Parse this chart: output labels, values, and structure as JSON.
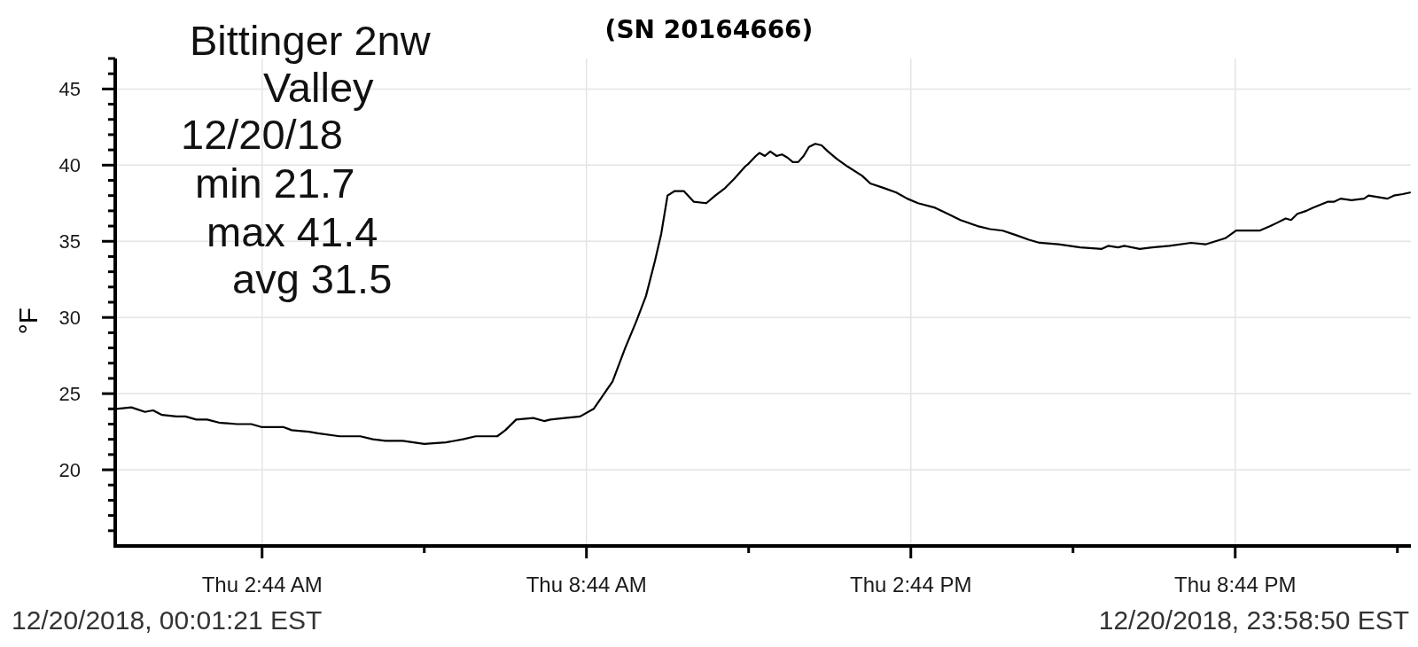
{
  "chart_data": {
    "type": "line",
    "title": "(SN 20164666)",
    "ylabel": "°F",
    "annotations": [
      "Bittinger 2nw",
      "Valley",
      "12/20/18",
      "min 21.7",
      "max 41.4",
      "avg 31.5",
      "12/20/2018, 00:01:21 EST",
      "12/20/2018, 23:58:50 EST"
    ],
    "x": [
      "2018-12-20T00:02",
      "2018-12-20T00:19",
      "2018-12-20T00:34",
      "2018-12-20T00:43",
      "2018-12-20T00:53",
      "2018-12-20T01:09",
      "2018-12-20T01:19",
      "2018-12-20T01:31",
      "2018-12-20T01:43",
      "2018-12-20T01:56",
      "2018-12-20T02:16",
      "2018-12-20T02:32",
      "2018-12-20T02:44",
      "2018-12-20T03:08",
      "2018-12-20T03:17",
      "2018-12-20T03:36",
      "2018-12-20T03:46",
      "2018-12-20T04:10",
      "2018-12-20T04:33",
      "2018-12-20T04:47",
      "2018-12-20T05:01",
      "2018-12-20T05:20",
      "2018-12-20T05:44",
      "2018-12-20T06:08",
      "2018-12-20T06:27",
      "2018-12-20T06:41",
      "2018-12-20T07:05",
      "2018-12-20T07:14",
      "2018-12-20T07:26",
      "2018-12-20T07:45",
      "2018-12-20T07:57",
      "2018-12-20T08:04",
      "2018-12-20T08:20",
      "2018-12-20T08:37",
      "2018-12-20T08:52",
      "2018-12-20T09:13",
      "2018-12-20T09:27",
      "2018-12-20T09:39",
      "2018-12-20T09:50",
      "2018-12-20T10:00",
      "2018-12-20T10:07",
      "2018-12-20T10:14",
      "2018-12-20T10:22",
      "2018-12-20T10:32",
      "2018-12-20T10:43",
      "2018-12-20T10:57",
      "2018-12-20T11:07",
      "2018-12-20T11:18",
      "2018-12-20T11:28",
      "2018-12-20T11:40",
      "2018-12-20T11:44",
      "2018-12-20T11:52",
      "2018-12-20T11:56",
      "2018-12-20T12:02",
      "2018-12-20T12:08",
      "2018-12-20T12:15",
      "2018-12-20T12:21",
      "2018-12-20T12:27",
      "2018-12-20T12:33",
      "2018-12-20T12:39",
      "2018-12-20T12:45",
      "2018-12-20T12:51",
      "2018-12-20T12:58",
      "2018-12-20T13:05",
      "2018-12-20T13:12",
      "2018-12-20T13:22",
      "2018-12-20T13:34",
      "2018-12-20T13:50",
      "2018-12-20T13:59",
      "2018-12-20T14:14",
      "2018-12-20T14:28",
      "2018-12-20T14:40",
      "2018-12-20T14:52",
      "2018-12-20T15:11",
      "2018-12-20T15:25",
      "2018-12-20T15:39",
      "2018-12-20T15:58",
      "2018-12-20T16:12",
      "2018-12-20T16:26",
      "2018-12-20T16:41",
      "2018-12-20T16:55",
      "2018-12-20T17:07",
      "2018-12-20T17:28",
      "2018-12-20T17:52",
      "2018-12-20T18:16",
      "2018-12-20T18:23",
      "2018-12-20T18:34",
      "2018-12-20T18:41",
      "2018-12-20T18:58",
      "2018-12-20T19:12",
      "2018-12-20T19:31",
      "2018-12-20T19:55",
      "2018-12-20T20:11",
      "2018-12-20T20:33",
      "2018-12-20T20:45",
      "2018-12-20T21:11",
      "2018-12-20T21:23",
      "2018-12-20T21:30",
      "2018-12-20T21:40",
      "2018-12-20T21:46",
      "2018-12-20T21:53",
      "2018-12-20T22:03",
      "2018-12-20T22:10",
      "2018-12-20T22:27",
      "2018-12-20T22:34",
      "2018-12-20T22:41",
      "2018-12-20T22:53",
      "2018-12-20T23:07",
      "2018-12-20T23:12",
      "2018-12-20T23:33",
      "2018-12-20T23:40",
      "2018-12-20T23:50",
      "2018-12-20T23:58"
    ],
    "values": [
      24.0,
      24.1,
      23.8,
      23.9,
      23.6,
      23.5,
      23.5,
      23.3,
      23.3,
      23.1,
      23.0,
      23.0,
      22.8,
      22.8,
      22.6,
      22.5,
      22.4,
      22.2,
      22.2,
      22.0,
      21.9,
      21.9,
      21.7,
      21.8,
      22.0,
      22.2,
      22.2,
      22.6,
      23.3,
      23.4,
      23.2,
      23.3,
      23.4,
      23.5,
      24.0,
      25.8,
      28.0,
      29.7,
      31.4,
      33.7,
      35.5,
      38.0,
      38.3,
      38.3,
      37.6,
      37.5,
      38.0,
      38.5,
      39.1,
      39.9,
      40.1,
      40.6,
      40.8,
      40.6,
      40.9,
      40.6,
      40.7,
      40.5,
      40.2,
      40.2,
      40.6,
      41.2,
      41.4,
      41.3,
      40.9,
      40.4,
      39.9,
      39.3,
      38.8,
      38.5,
      38.2,
      37.8,
      37.5,
      37.2,
      36.8,
      36.4,
      36.0,
      35.8,
      35.7,
      35.4,
      35.1,
      34.9,
      34.8,
      34.6,
      34.5,
      34.7,
      34.6,
      34.7,
      34.5,
      34.6,
      34.7,
      34.9,
      34.8,
      35.2,
      35.7,
      35.7,
      36.0,
      36.2,
      36.5,
      36.4,
      36.8,
      37.0,
      37.2,
      37.6,
      37.6,
      37.8,
      37.7,
      37.8,
      38.0,
      37.8,
      38.0,
      38.1,
      38.2
    ],
    "color": "#000000",
    "xlim": [
      "2018-12-20T00:01",
      "2018-12-20T23:59"
    ],
    "xticks": [
      {
        "value": "2018-12-20T02:44",
        "label": "Thu 2:44 AM"
      },
      {
        "value": "2018-12-20T05:44",
        "label": null
      },
      {
        "value": "2018-12-20T08:44",
        "label": "Thu 8:44 AM"
      },
      {
        "value": "2018-12-20T11:44",
        "label": null
      },
      {
        "value": "2018-12-20T14:44",
        "label": "Thu 2:44 PM"
      },
      {
        "value": "2018-12-20T17:44",
        "label": null
      },
      {
        "value": "2018-12-20T20:44",
        "label": "Thu 8:44 PM"
      },
      {
        "value": "2018-12-20T23:44",
        "label": null
      }
    ],
    "ylim": [
      15,
      47
    ],
    "yticks": [
      {
        "value": 16,
        "label": null
      },
      {
        "value": 17,
        "label": null
      },
      {
        "value": 18,
        "label": null
      },
      {
        "value": 19,
        "label": null
      },
      20,
      {
        "value": 21,
        "label": null
      },
      {
        "value": 22,
        "label": null
      },
      {
        "value": 23,
        "label": null
      },
      {
        "value": 24,
        "label": null
      },
      25,
      {
        "value": 26,
        "label": null
      },
      {
        "value": 27,
        "label": null
      },
      {
        "value": 28,
        "label": null
      },
      {
        "value": 29,
        "label": null
      },
      30,
      {
        "value": 31,
        "label": null
      },
      {
        "value": 32,
        "label": null
      },
      {
        "value": 33,
        "label": null
      },
      {
        "value": 34,
        "label": null
      },
      35,
      {
        "value": 36,
        "label": null
      },
      {
        "value": 37,
        "label": null
      },
      {
        "value": 38,
        "label": null
      },
      {
        "value": 39,
        "label": null
      },
      40,
      {
        "value": 41,
        "label": null
      },
      {
        "value": 42,
        "label": null
      },
      {
        "value": 43,
        "label": null
      },
      {
        "value": 44,
        "label": null
      },
      45,
      {
        "value": 46,
        "label": null
      },
      {
        "value": 47,
        "label": null
      }
    ],
    "grid": true
  }
}
